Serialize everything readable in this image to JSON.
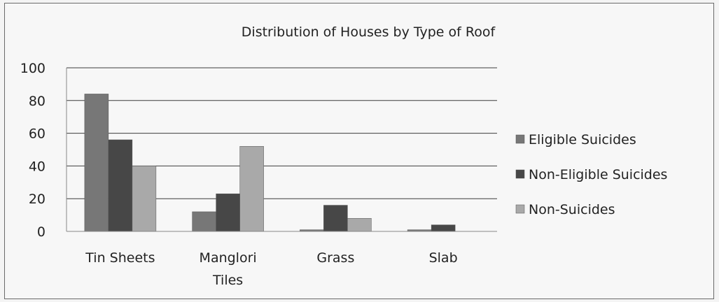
{
  "chart_data": {
    "type": "bar",
    "title": "Distribution of Houses by Type of Roof",
    "xlabel": "",
    "ylabel": "",
    "ylim": [
      0,
      100
    ],
    "yticks": [
      "0",
      "20",
      "40",
      "60",
      "80",
      "100"
    ],
    "categories": [
      [
        "Tin Sheets"
      ],
      [
        "Manglori",
        "Tiles"
      ],
      [
        "Grass"
      ],
      [
        "Slab"
      ]
    ],
    "series": [
      {
        "name": "Eligible Suicides",
        "color": "#777777",
        "values": [
          84,
          12,
          1,
          1
        ]
      },
      {
        "name": "Non-Eligible Suicides",
        "color": "#474747",
        "values": [
          56,
          23,
          16,
          4
        ]
      },
      {
        "name": "Non-Suicides",
        "color": "#a9a9a9",
        "values": [
          40,
          52,
          8,
          0
        ]
      }
    ],
    "grid": true,
    "legend": "right"
  }
}
